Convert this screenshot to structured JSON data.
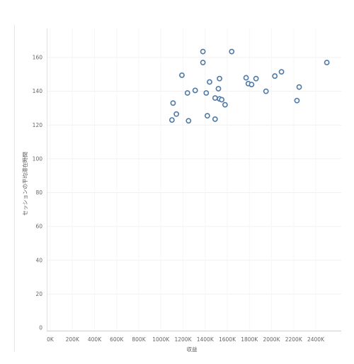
{
  "chart_data": {
    "type": "scatter",
    "title": "",
    "xlabel": "収益",
    "ylabel": "セッションの平均滞在時間",
    "xlim": [
      0,
      2600000
    ],
    "ylim": [
      0,
      175
    ],
    "x_ticks": [
      0,
      200000,
      400000,
      600000,
      800000,
      1000000,
      1200000,
      1400000,
      1600000,
      1800000,
      2000000,
      2200000,
      2400000
    ],
    "x_tick_labels": [
      "0K",
      "200K",
      "400K",
      "600K",
      "800K",
      "1000K",
      "1200K",
      "1400K",
      "1600K",
      "1800K",
      "2000K",
      "2200K",
      "2400K"
    ],
    "y_ticks": [
      0,
      20,
      40,
      60,
      80,
      100,
      120,
      140,
      160
    ],
    "y_tick_labels": [
      "0",
      "20",
      "40",
      "60",
      "80",
      "100",
      "120",
      "140",
      "160"
    ],
    "grid": "horizontal and vertical, very light",
    "legend": "none",
    "marker": "hollow circle",
    "marker_color": "#4e79a7",
    "points": [
      {
        "x": 1380000,
        "y": 163.5
      },
      {
        "x": 1640000,
        "y": 163.5
      },
      {
        "x": 1380000,
        "y": 157
      },
      {
        "x": 2500000,
        "y": 157
      },
      {
        "x": 1190000,
        "y": 149.5
      },
      {
        "x": 2090000,
        "y": 151.5
      },
      {
        "x": 1770000,
        "y": 148
      },
      {
        "x": 1860000,
        "y": 147.5
      },
      {
        "x": 2030000,
        "y": 149
      },
      {
        "x": 1530000,
        "y": 147.5
      },
      {
        "x": 1440000,
        "y": 145.5
      },
      {
        "x": 1790000,
        "y": 144.5
      },
      {
        "x": 1820000,
        "y": 144
      },
      {
        "x": 2250000,
        "y": 142.5
      },
      {
        "x": 1520000,
        "y": 141.5
      },
      {
        "x": 1310000,
        "y": 140.5
      },
      {
        "x": 1950000,
        "y": 140
      },
      {
        "x": 1240000,
        "y": 139
      },
      {
        "x": 1410000,
        "y": 139
      },
      {
        "x": 1490000,
        "y": 136
      },
      {
        "x": 1530000,
        "y": 135.5
      },
      {
        "x": 1550000,
        "y": 135
      },
      {
        "x": 2230000,
        "y": 134.5
      },
      {
        "x": 1110000,
        "y": 133
      },
      {
        "x": 1580000,
        "y": 132
      },
      {
        "x": 1140000,
        "y": 126.5
      },
      {
        "x": 1420000,
        "y": 125.5
      },
      {
        "x": 1100000,
        "y": 123
      },
      {
        "x": 1250000,
        "y": 122.5
      },
      {
        "x": 1490000,
        "y": 123.5
      }
    ]
  }
}
